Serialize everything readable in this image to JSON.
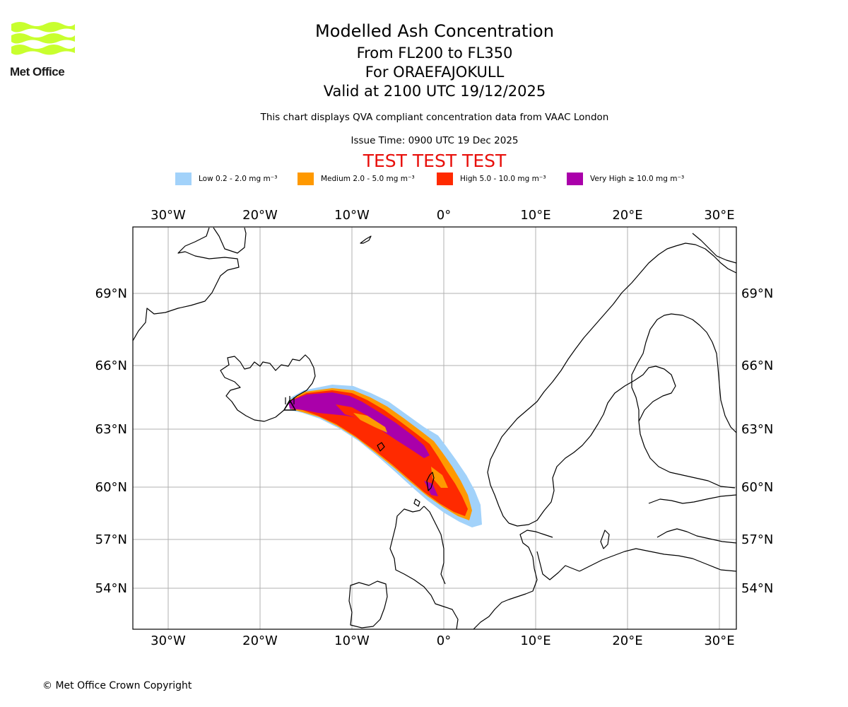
{
  "logo": {
    "text": "Met Office"
  },
  "title": {
    "main": "Modelled Ash Concentration",
    "levels": "From FL200 to FL350",
    "volcano": "For ORAEFAJOKULL",
    "valid": "Valid at 2100 UTC 19/12/2025"
  },
  "info": {
    "compliance": "This chart displays QVA compliant concentration data from VAAC London",
    "issue_time": "Issue Time: 0900 UTC 19 Dec 2025"
  },
  "test_banner": "TEST TEST TEST",
  "legend": [
    {
      "label": "Low 0.2 - 2.0 mg m⁻³",
      "color": "#a2d2fa"
    },
    {
      "label": "Medium 2.0 - 5.0 mg m⁻³",
      "color": "#ff9900"
    },
    {
      "label": "High 5.0 - 10.0 mg m⁻³",
      "color": "#ff2a00"
    },
    {
      "label": "Very High  ≥  10.0 mg m⁻³",
      "color": "#aa00aa"
    }
  ],
  "map": {
    "lon_ticks": [
      "30°W",
      "20°W",
      "10°W",
      "0°",
      "10°E",
      "20°E",
      "30°E"
    ],
    "lat_ticks": [
      "69°N",
      "66°N",
      "63°N",
      "60°N",
      "57°N",
      "54°N"
    ],
    "volcano_marker": "triangle-icon"
  },
  "copyright": "© Met Office Crown Copyright"
}
